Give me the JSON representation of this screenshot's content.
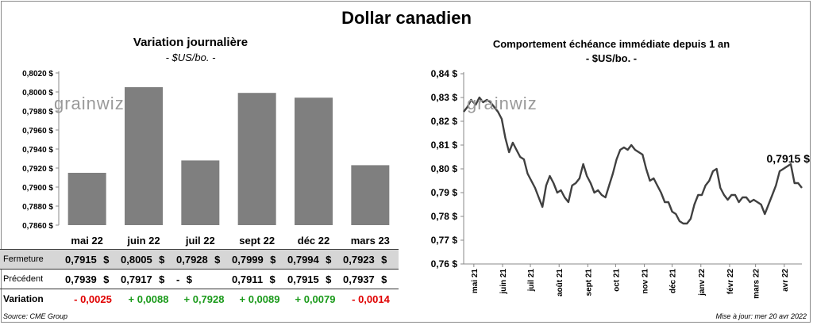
{
  "title": "Dollar canadien",
  "left_panel": {
    "title": "Variation  journalière",
    "subtitle": "- $US/bo. -",
    "watermark": "grainwiz"
  },
  "right_panel": {
    "title": "Comportement échéance immédiate depuis 1 an",
    "subtitle": "- $US/bo. -",
    "watermark": "grainwiz",
    "last_value_label": "0,7915 $"
  },
  "table": {
    "rows": [
      {
        "label": "Fermeture",
        "cells": [
          {
            "num": "0,7915",
            "dol": "$"
          },
          {
            "num": "0,8005",
            "dol": "$"
          },
          {
            "num": "0,7928",
            "dol": "$"
          },
          {
            "num": "0,7999",
            "dol": "$"
          },
          {
            "num": "0,7994",
            "dol": "$"
          },
          {
            "num": "0,7923",
            "dol": "$"
          }
        ]
      },
      {
        "label": "Précédent",
        "cells": [
          {
            "num": "0,7939",
            "dol": "$"
          },
          {
            "num": "0,7917",
            "dol": "$"
          },
          {
            "num": "-",
            "dol": "$"
          },
          {
            "num": "0,7911",
            "dol": "$"
          },
          {
            "num": "0,7915",
            "dol": "$"
          },
          {
            "num": "0,7937",
            "dol": "$"
          }
        ]
      },
      {
        "label": "Variation",
        "cells": [
          {
            "text": "- 0,0025",
            "sign": "neg"
          },
          {
            "text": "+ 0,0088",
            "sign": "pos"
          },
          {
            "text": "+ 0,7928",
            "sign": "pos"
          },
          {
            "text": "+ 0,0089",
            "sign": "pos"
          },
          {
            "text": "+ 0,0079",
            "sign": "pos"
          },
          {
            "text": "- 0,0014",
            "sign": "neg"
          }
        ]
      }
    ]
  },
  "footer": {
    "source": "Source: CME Group",
    "updated": "Mise à jour: mer 20 avr 2022"
  },
  "colors": {
    "bar": "#7f7f7f",
    "line": "#404040",
    "negative": "#e00000",
    "positive": "#1a9a1a",
    "highlight_row": "#d6d6d6"
  },
  "chart_data": [
    {
      "type": "bar",
      "title": "Variation  journalière",
      "subtitle": "- $US/bo. -",
      "categories": [
        "mai 22",
        "juin 22",
        "juil 22",
        "sept 22",
        "déc 22",
        "mars 23"
      ],
      "values": [
        0.7915,
        0.8005,
        0.7928,
        0.7999,
        0.7994,
        0.7923
      ],
      "ylim": [
        0.786,
        0.802
      ],
      "yticks": [
        0.786,
        0.788,
        0.79,
        0.792,
        0.794,
        0.796,
        0.798,
        0.8,
        0.802
      ],
      "ytick_labels": [
        "0,7860 $",
        "0,7880 $",
        "0,7900 $",
        "0,7920 $",
        "0,7940 $",
        "0,7960 $",
        "0,7980 $",
        "0,8000 $",
        "0,8020 $"
      ],
      "grid": false
    },
    {
      "type": "line",
      "title": "Comportement échéance immédiate depuis 1 an",
      "subtitle": "- $US/bo. -",
      "ylim": [
        0.76,
        0.84
      ],
      "yticks": [
        0.76,
        0.77,
        0.78,
        0.79,
        0.8,
        0.81,
        0.82,
        0.83,
        0.84
      ],
      "ytick_labels": [
        "0,76 $",
        "0,77 $",
        "0,78 $",
        "0,79 $",
        "0,80 $",
        "0,81 $",
        "0,82 $",
        "0,83 $",
        "0,84 $"
      ],
      "xtick_labels": [
        "mai 21",
        "juin 21",
        "juil 21",
        "août 21",
        "sept 21",
        "oct 21",
        "nov 21",
        "déc 21",
        "janv 22",
        "févr 22",
        "mars 22",
        "avr 22"
      ],
      "xlim": [
        "2021-04-20",
        "2022-04-20"
      ],
      "grid": false,
      "annotation": "0,7915 $",
      "series": [
        {
          "x": [
            "2021-04-20",
            "2021-04-24",
            "2021-04-28",
            "2021-05-03",
            "2021-05-07",
            "2021-05-11",
            "2021-05-15",
            "2021-05-19",
            "2021-05-23",
            "2021-05-27",
            "2021-05-31",
            "2021-06-04",
            "2021-06-08",
            "2021-06-12",
            "2021-06-16",
            "2021-06-20",
            "2021-06-24",
            "2021-06-28",
            "2021-07-02",
            "2021-07-06",
            "2021-07-10",
            "2021-07-14",
            "2021-07-18",
            "2021-07-22",
            "2021-07-26",
            "2021-07-30",
            "2021-08-03",
            "2021-08-07",
            "2021-08-11",
            "2021-08-15",
            "2021-08-19",
            "2021-08-23",
            "2021-08-27",
            "2021-08-31",
            "2021-09-04",
            "2021-09-08",
            "2021-09-12",
            "2021-09-16",
            "2021-09-20",
            "2021-09-24",
            "2021-09-28",
            "2021-10-02",
            "2021-10-06",
            "2021-10-10",
            "2021-10-14",
            "2021-10-18",
            "2021-10-22",
            "2021-10-26",
            "2021-10-30",
            "2021-11-03",
            "2021-11-07",
            "2021-11-11",
            "2021-11-15",
            "2021-11-19",
            "2021-11-23",
            "2021-11-27",
            "2021-12-01",
            "2021-12-05",
            "2021-12-09",
            "2021-12-13",
            "2021-12-17",
            "2021-12-21",
            "2021-12-25",
            "2021-12-29",
            "2022-01-02",
            "2022-01-06",
            "2022-01-10",
            "2022-01-14",
            "2022-01-18",
            "2022-01-22",
            "2022-01-26",
            "2022-01-30",
            "2022-02-03",
            "2022-02-07",
            "2022-02-11",
            "2022-02-15",
            "2022-02-19",
            "2022-02-23",
            "2022-02-27",
            "2022-03-03",
            "2022-03-07",
            "2022-03-11",
            "2022-03-15",
            "2022-03-19",
            "2022-03-23",
            "2022-03-27",
            "2022-03-31",
            "2022-04-04",
            "2022-04-08",
            "2022-04-12",
            "2022-04-16",
            "2022-04-20"
          ],
          "y": [
            0.824,
            0.826,
            0.829,
            0.827,
            0.83,
            0.828,
            0.829,
            0.828,
            0.826,
            0.824,
            0.821,
            0.813,
            0.807,
            0.811,
            0.808,
            0.805,
            0.804,
            0.798,
            0.795,
            0.792,
            0.788,
            0.784,
            0.793,
            0.797,
            0.794,
            0.79,
            0.791,
            0.788,
            0.786,
            0.793,
            0.794,
            0.796,
            0.802,
            0.797,
            0.794,
            0.79,
            0.791,
            0.789,
            0.788,
            0.793,
            0.798,
            0.804,
            0.808,
            0.809,
            0.808,
            0.81,
            0.808,
            0.807,
            0.806,
            0.8,
            0.795,
            0.796,
            0.793,
            0.79,
            0.786,
            0.786,
            0.782,
            0.781,
            0.778,
            0.777,
            0.777,
            0.779,
            0.785,
            0.789,
            0.789,
            0.793,
            0.795,
            0.799,
            0.8,
            0.792,
            0.789,
            0.787,
            0.789,
            0.789,
            0.786,
            0.788,
            0.788,
            0.786,
            0.787,
            0.786,
            0.785,
            0.781,
            0.785,
            0.789,
            0.793,
            0.799,
            0.8,
            0.801,
            0.802,
            0.794,
            0.794,
            0.792
          ]
        }
      ]
    }
  ]
}
